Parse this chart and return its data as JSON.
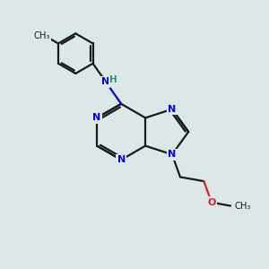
{
  "bg_color": "#dce8e8",
  "bond_color": "#1a1a1a",
  "n_color": "#0000ee",
  "o_color": "#dd2222",
  "nh_color": "#2a9090",
  "lw": 1.6,
  "figsize": [
    3.0,
    3.0
  ],
  "dpi": 100,
  "xlim": [
    0,
    10
  ],
  "ylim": [
    0,
    10
  ]
}
